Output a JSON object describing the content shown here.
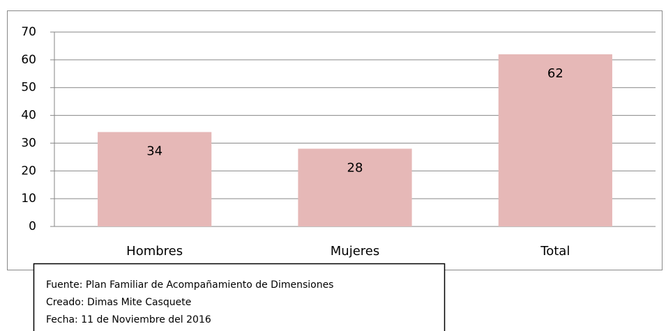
{
  "chart_data": {
    "type": "bar",
    "categories": [
      "Hombres",
      "Mujeres",
      "Total"
    ],
    "values": [
      34,
      28,
      62
    ],
    "color": "#e6b8b7",
    "ylim": [
      0,
      70
    ],
    "yticks": [
      0,
      10,
      20,
      30,
      40,
      50,
      60,
      70
    ],
    "grid": true
  },
  "source_box": {
    "lines": [
      "Fuente: Plan Familiar de Acompañamiento de Dimensiones",
      "Creado: Dimas Mite Casquete",
      "Fecha: 11 de Noviembre del 2016"
    ]
  }
}
